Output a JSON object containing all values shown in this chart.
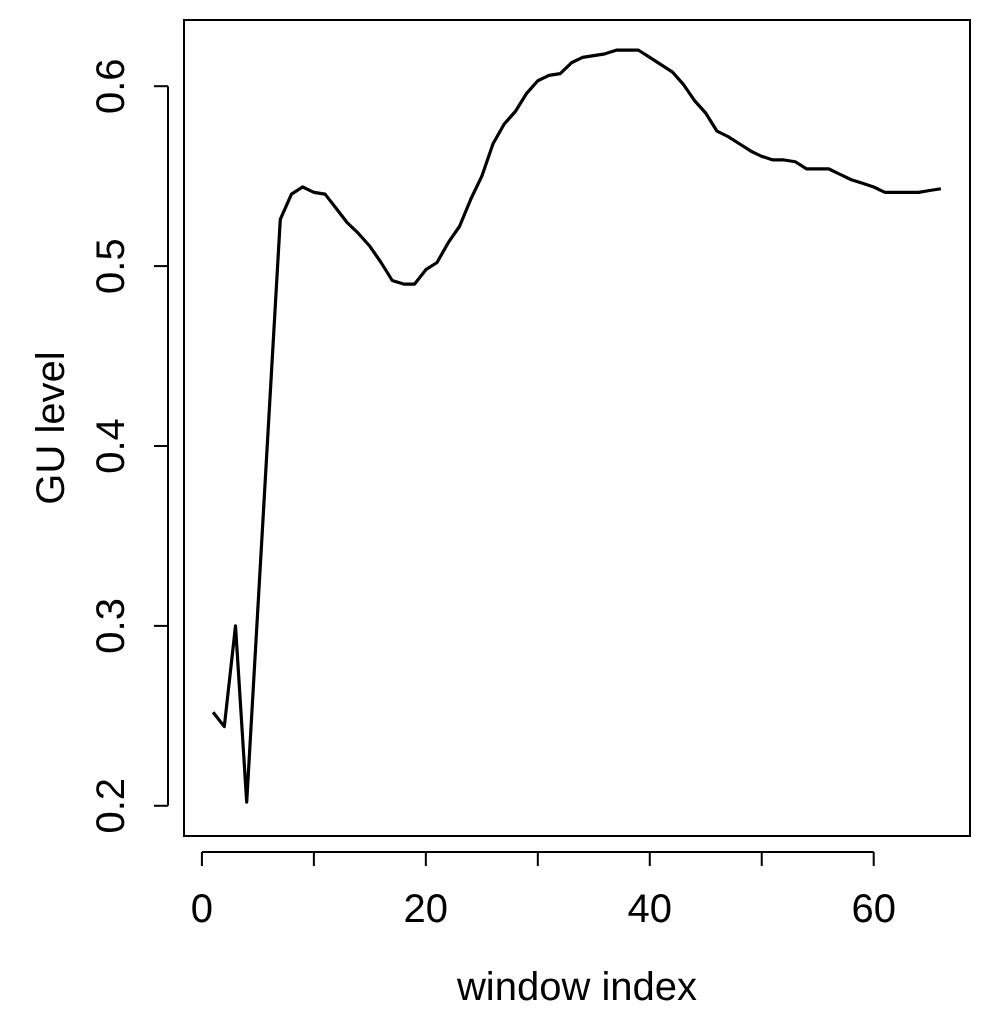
{
  "chart_data": {
    "type": "line",
    "xlabel": "window index",
    "ylabel": "GU level",
    "x": [
      1,
      2,
      3,
      4,
      7,
      8,
      9,
      10,
      11,
      12,
      13,
      14,
      15,
      16,
      17,
      18,
      19,
      20,
      21,
      22,
      23,
      24,
      25,
      26,
      27,
      28,
      29,
      30,
      31,
      32,
      33,
      34,
      35,
      36,
      37,
      38,
      39,
      40,
      41,
      42,
      43,
      44,
      45,
      46,
      47,
      48,
      49,
      50,
      51,
      52,
      53,
      54,
      55,
      56,
      57,
      58,
      59,
      60,
      61,
      62,
      63,
      64,
      65,
      66
    ],
    "series": [
      {
        "color": "#000000",
        "values": [
          0.252,
          0.244,
          0.3,
          0.202,
          0.526,
          0.54,
          0.544,
          0.541,
          0.54,
          0.532,
          0.524,
          0.518,
          0.511,
          0.502,
          0.492,
          0.49,
          0.49,
          0.498,
          0.502,
          0.513,
          0.522,
          0.537,
          0.55,
          0.568,
          0.579,
          0.586,
          0.596,
          0.603,
          0.606,
          0.607,
          0.613,
          0.616,
          0.617,
          0.618,
          0.62,
          0.62,
          0.62,
          0.616,
          0.612,
          0.608,
          0.601,
          0.592,
          0.585,
          0.575,
          0.572,
          0.568,
          0.564,
          0.561,
          0.559,
          0.559,
          0.558,
          0.554,
          0.554,
          0.554,
          0.551,
          0.548,
          0.546,
          0.544,
          0.541,
          0.541,
          0.541,
          0.541,
          0.542,
          0.543
        ]
      }
    ],
    "xlim": [
      -1.6,
      68.6
    ],
    "ylim": [
      0.1832,
      0.6368
    ],
    "xticks": [
      0,
      {
        "value": 10,
        "label": null
      },
      20,
      {
        "value": 30,
        "label": null
      },
      40,
      {
        "value": 50,
        "label": null
      },
      60
    ],
    "yticks": [
      0.2,
      0.3,
      0.4,
      0.5,
      0.6
    ],
    "grid": false,
    "marker": "none",
    "line_style": "solid"
  }
}
